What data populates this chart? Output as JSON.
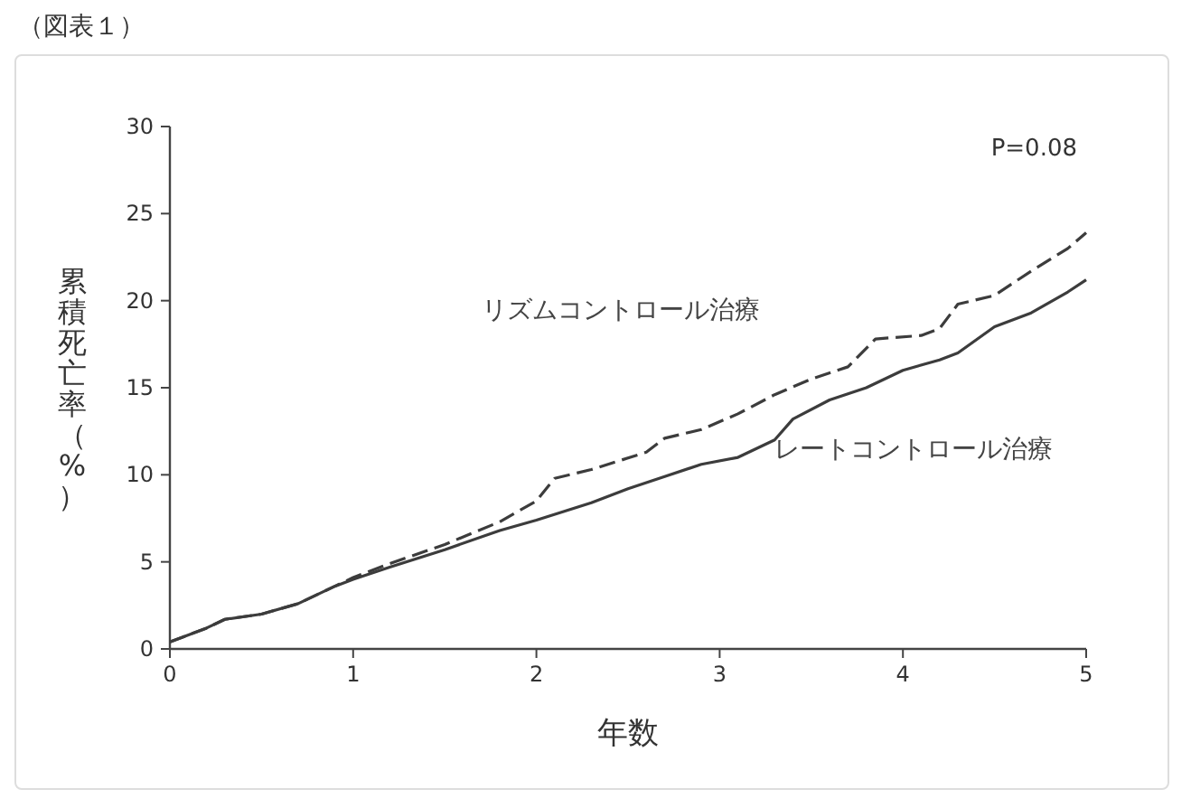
{
  "chart_data": {
    "type": "line",
    "title": "（図表１）",
    "xlabel": "年数",
    "ylabel": "累積死亡率（%）",
    "annotations": [
      "P=0.08"
    ],
    "xlim": [
      0,
      5
    ],
    "xticks": [
      0,
      1,
      2,
      3,
      4,
      5
    ],
    "ylim": [
      0,
      30
    ],
    "yticks": [
      0,
      5,
      10,
      15,
      20,
      25,
      30
    ],
    "grid": false,
    "series": [
      {
        "name": "リズムコントロール治療",
        "color": "#3c3c3c",
        "line_style": "dashed",
        "x": [
          0,
          0.2,
          0.3,
          0.5,
          0.7,
          0.9,
          1.0,
          1.2,
          1.5,
          1.8,
          2.0,
          2.1,
          2.3,
          2.6,
          2.7,
          2.9,
          3.1,
          3.3,
          3.5,
          3.7,
          3.85,
          4.1,
          4.2,
          4.3,
          4.5,
          4.7,
          4.9,
          5.0
        ],
        "values": [
          0.4,
          1.2,
          1.7,
          2.0,
          2.6,
          3.6,
          4.1,
          4.9,
          6.0,
          7.3,
          8.5,
          9.8,
          10.3,
          11.3,
          12.1,
          12.6,
          13.5,
          14.6,
          15.5,
          16.2,
          17.8,
          18.0,
          18.4,
          19.8,
          20.3,
          21.7,
          23.0,
          23.9
        ]
      },
      {
        "name": "レートコントロール治療",
        "color": "#3c3c3c",
        "line_style": "solid",
        "x": [
          0,
          0.2,
          0.3,
          0.5,
          0.7,
          0.9,
          1.0,
          1.2,
          1.5,
          1.8,
          2.0,
          2.3,
          2.5,
          2.7,
          2.9,
          3.1,
          3.3,
          3.4,
          3.6,
          3.8,
          4.0,
          4.2,
          4.3,
          4.5,
          4.7,
          4.9,
          5.0
        ],
        "values": [
          0.4,
          1.2,
          1.7,
          2.0,
          2.6,
          3.6,
          4.0,
          4.7,
          5.7,
          6.8,
          7.4,
          8.4,
          9.2,
          9.9,
          10.6,
          11.0,
          12.0,
          13.2,
          14.3,
          15.0,
          16.0,
          16.6,
          17.0,
          18.5,
          19.3,
          20.5,
          21.2
        ]
      }
    ]
  }
}
